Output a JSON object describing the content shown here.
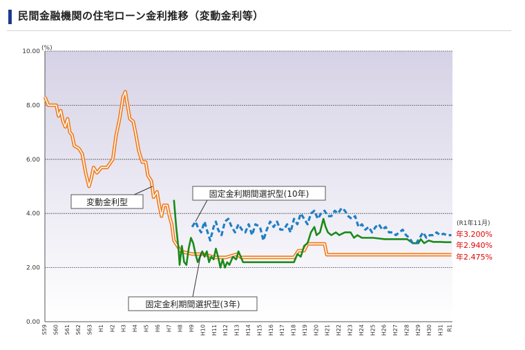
{
  "header": {
    "title": "民間金融機関の住宅ローン金利推移（変動金利等）"
  },
  "chart_data": {
    "type": "line",
    "y_unit": "(%)",
    "ylim": [
      0,
      10
    ],
    "yticks": [
      "0.00",
      "2.00",
      "4.00",
      "6.00",
      "8.00",
      "10.00"
    ],
    "x_start": 1984.0,
    "x_end": 2020.0,
    "x_ticks": [
      {
        "label": "S59",
        "year": 1984
      },
      {
        "label": "S60",
        "year": 1985
      },
      {
        "label": "S61",
        "year": 1986
      },
      {
        "label": "S62",
        "year": 1987
      },
      {
        "label": "S63",
        "year": 1988
      },
      {
        "label": "H1",
        "year": 1989
      },
      {
        "label": "H2",
        "year": 1990
      },
      {
        "label": "H3",
        "year": 1991
      },
      {
        "label": "H4",
        "year": 1992
      },
      {
        "label": "H5",
        "year": 1993
      },
      {
        "label": "H6",
        "year": 1994
      },
      {
        "label": "H7",
        "year": 1995
      },
      {
        "label": "H8",
        "year": 1996
      },
      {
        "label": "H9",
        "year": 1997
      },
      {
        "label": "H10",
        "year": 1998
      },
      {
        "label": "H11",
        "year": 1999
      },
      {
        "label": "H12",
        "year": 2000
      },
      {
        "label": "H13",
        "year": 2001
      },
      {
        "label": "H14",
        "year": 2002
      },
      {
        "label": "H15",
        "year": 2003
      },
      {
        "label": "H16",
        "year": 2004
      },
      {
        "label": "H17",
        "year": 2005
      },
      {
        "label": "H18",
        "year": 2006
      },
      {
        "label": "H19",
        "year": 2007
      },
      {
        "label": "H20",
        "year": 2008
      },
      {
        "label": "H21",
        "year": 2009
      },
      {
        "label": "H22",
        "year": 2010
      },
      {
        "label": "H23",
        "year": 2011
      },
      {
        "label": "H24",
        "year": 2012
      },
      {
        "label": "H25",
        "year": 2013
      },
      {
        "label": "H26",
        "year": 2014
      },
      {
        "label": "H27",
        "year": 2015
      },
      {
        "label": "H28",
        "year": 2016
      },
      {
        "label": "H29",
        "year": 2017
      },
      {
        "label": "H30",
        "year": 2018
      },
      {
        "label": "H31",
        "year": 2019
      },
      {
        "label": "R1",
        "year": 2019.8
      }
    ],
    "series": [
      {
        "name": "変動金利型",
        "color": "#f07d1f",
        "style": "double",
        "points": [
          [
            1984.0,
            8.3
          ],
          [
            1984.3,
            8.0
          ],
          [
            1985.0,
            8.0
          ],
          [
            1985.2,
            7.6
          ],
          [
            1985.4,
            7.8
          ],
          [
            1985.6,
            7.4
          ],
          [
            1985.8,
            7.2
          ],
          [
            1986.0,
            7.5
          ],
          [
            1986.2,
            7.0
          ],
          [
            1986.4,
            6.9
          ],
          [
            1986.6,
            6.5
          ],
          [
            1987.0,
            6.4
          ],
          [
            1987.3,
            6.2
          ],
          [
            1987.6,
            5.5
          ],
          [
            1987.9,
            5.0
          ],
          [
            1988.1,
            5.3
          ],
          [
            1988.3,
            5.7
          ],
          [
            1988.6,
            5.5
          ],
          [
            1989.0,
            5.7
          ],
          [
            1989.5,
            5.7
          ],
          [
            1990.0,
            6.0
          ],
          [
            1990.3,
            6.9
          ],
          [
            1990.6,
            7.5
          ],
          [
            1990.9,
            8.3
          ],
          [
            1991.1,
            8.5
          ],
          [
            1991.3,
            8.0
          ],
          [
            1991.5,
            7.5
          ],
          [
            1991.8,
            7.4
          ],
          [
            1992.0,
            7.0
          ],
          [
            1992.3,
            6.3
          ],
          [
            1992.6,
            5.9
          ],
          [
            1992.9,
            5.9
          ],
          [
            1993.1,
            5.4
          ],
          [
            1993.4,
            5.2
          ],
          [
            1993.6,
            4.6
          ],
          [
            1993.9,
            4.8
          ],
          [
            1994.1,
            4.3
          ],
          [
            1994.3,
            3.9
          ],
          [
            1994.5,
            4.3
          ],
          [
            1994.8,
            4.3
          ],
          [
            1995.0,
            3.9
          ],
          [
            1995.2,
            3.6
          ],
          [
            1995.4,
            3.0
          ],
          [
            1995.7,
            2.8
          ],
          [
            1996.0,
            2.6
          ],
          [
            1997.0,
            2.5
          ],
          [
            1998.0,
            2.5
          ],
          [
            1999.0,
            2.375
          ],
          [
            2000.0,
            2.375
          ],
          [
            2001.0,
            2.5
          ],
          [
            2001.3,
            2.375
          ],
          [
            2002.0,
            2.375
          ],
          [
            2004.0,
            2.375
          ],
          [
            2006.0,
            2.375
          ],
          [
            2006.4,
            2.625
          ],
          [
            2006.9,
            2.625
          ],
          [
            2007.2,
            2.875
          ],
          [
            2008.0,
            2.875
          ],
          [
            2008.7,
            2.875
          ],
          [
            2008.9,
            2.475
          ],
          [
            2012.0,
            2.475
          ],
          [
            2016.0,
            2.475
          ],
          [
            2019.9,
            2.475
          ]
        ]
      },
      {
        "name": "固定金利期間選択型(3年)",
        "color": "#1a8a1a",
        "style": "solid",
        "points": [
          [
            1995.4,
            4.5
          ],
          [
            1995.6,
            3.5
          ],
          [
            1995.8,
            2.7
          ],
          [
            1995.9,
            2.1
          ],
          [
            1996.1,
            2.8
          ],
          [
            1996.3,
            2.2
          ],
          [
            1996.5,
            2.1
          ],
          [
            1996.7,
            2.7
          ],
          [
            1996.9,
            3.1
          ],
          [
            1997.1,
            2.9
          ],
          [
            1997.3,
            2.5
          ],
          [
            1997.5,
            2.2
          ],
          [
            1997.7,
            2.4
          ],
          [
            1997.9,
            2.6
          ],
          [
            1998.1,
            2.4
          ],
          [
            1998.3,
            2.6
          ],
          [
            1998.5,
            2.2
          ],
          [
            1998.7,
            2.4
          ],
          [
            1998.9,
            2.3
          ],
          [
            1999.1,
            2.7
          ],
          [
            1999.3,
            2.4
          ],
          [
            1999.5,
            2.0
          ],
          [
            1999.7,
            2.3
          ],
          [
            1999.9,
            2.0
          ],
          [
            2000.1,
            2.2
          ],
          [
            2000.3,
            2.1
          ],
          [
            2000.6,
            2.4
          ],
          [
            2000.9,
            2.3
          ],
          [
            2001.1,
            2.6
          ],
          [
            2001.3,
            2.4
          ],
          [
            2001.5,
            2.2
          ],
          [
            2002.0,
            2.2
          ],
          [
            2003.0,
            2.2
          ],
          [
            2004.0,
            2.2
          ],
          [
            2005.0,
            2.2
          ],
          [
            2006.0,
            2.2
          ],
          [
            2006.3,
            2.5
          ],
          [
            2006.6,
            2.4
          ],
          [
            2006.9,
            2.8
          ],
          [
            2007.2,
            2.9
          ],
          [
            2007.5,
            3.3
          ],
          [
            2007.8,
            3.5
          ],
          [
            2008.0,
            3.2
          ],
          [
            2008.3,
            3.3
          ],
          [
            2008.6,
            3.8
          ],
          [
            2008.8,
            3.5
          ],
          [
            2009.0,
            3.3
          ],
          [
            2009.3,
            3.2
          ],
          [
            2009.7,
            3.3
          ],
          [
            2010.0,
            3.2
          ],
          [
            2010.5,
            3.3
          ],
          [
            2011.0,
            3.3
          ],
          [
            2011.3,
            3.1
          ],
          [
            2011.6,
            3.2
          ],
          [
            2012.0,
            3.1
          ],
          [
            2013.0,
            3.1
          ],
          [
            2014.0,
            3.05
          ],
          [
            2015.0,
            3.05
          ],
          [
            2016.0,
            3.05
          ],
          [
            2016.5,
            2.9
          ],
          [
            2017.0,
            2.9
          ],
          [
            2017.2,
            3.05
          ],
          [
            2017.5,
            2.9
          ],
          [
            2017.9,
            3.0
          ],
          [
            2018.3,
            2.95
          ],
          [
            2018.7,
            2.95
          ],
          [
            2019.0,
            2.95
          ],
          [
            2019.3,
            2.94
          ],
          [
            2019.9,
            2.94
          ]
        ]
      },
      {
        "name": "固定金利期間選択型(10年)",
        "color": "#1f7fc4",
        "style": "dashed",
        "points": [
          [
            1997.0,
            3.5
          ],
          [
            1997.3,
            3.7
          ],
          [
            1997.5,
            3.5
          ],
          [
            1997.8,
            3.3
          ],
          [
            1998.1,
            3.7
          ],
          [
            1998.3,
            3.4
          ],
          [
            1998.6,
            3.0
          ],
          [
            1998.9,
            3.5
          ],
          [
            1999.1,
            3.7
          ],
          [
            1999.3,
            3.4
          ],
          [
            1999.6,
            3.2
          ],
          [
            1999.9,
            3.7
          ],
          [
            2000.2,
            3.8
          ],
          [
            2000.5,
            3.5
          ],
          [
            2000.8,
            3.3
          ],
          [
            2001.1,
            3.6
          ],
          [
            2001.4,
            3.4
          ],
          [
            2001.7,
            3.3
          ],
          [
            2002.0,
            3.6
          ],
          [
            2002.3,
            3.2
          ],
          [
            2002.6,
            3.6
          ],
          [
            2003.0,
            3.5
          ],
          [
            2003.3,
            3.0
          ],
          [
            2003.6,
            3.4
          ],
          [
            2003.9,
            3.7
          ],
          [
            2004.2,
            3.5
          ],
          [
            2004.5,
            3.7
          ],
          [
            2004.8,
            3.4
          ],
          [
            2005.1,
            3.4
          ],
          [
            2005.4,
            3.6
          ],
          [
            2005.7,
            3.3
          ],
          [
            2006.0,
            3.8
          ],
          [
            2006.3,
            3.6
          ],
          [
            2006.6,
            4.0
          ],
          [
            2006.9,
            3.8
          ],
          [
            2007.2,
            3.6
          ],
          [
            2007.5,
            4.0
          ],
          [
            2007.8,
            4.1
          ],
          [
            2008.1,
            3.8
          ],
          [
            2008.4,
            4.0
          ],
          [
            2008.7,
            4.1
          ],
          [
            2009.0,
            3.9
          ],
          [
            2009.3,
            3.9
          ],
          [
            2009.6,
            4.1
          ],
          [
            2009.9,
            4.0
          ],
          [
            2010.2,
            4.2
          ],
          [
            2010.5,
            4.1
          ],
          [
            2010.8,
            3.9
          ],
          [
            2011.1,
            3.8
          ],
          [
            2011.4,
            3.9
          ],
          [
            2011.7,
            3.5
          ],
          [
            2012.0,
            3.6
          ],
          [
            2012.3,
            3.4
          ],
          [
            2012.6,
            3.5
          ],
          [
            2012.9,
            3.3
          ],
          [
            2013.2,
            3.5
          ],
          [
            2013.5,
            3.6
          ],
          [
            2013.8,
            3.4
          ],
          [
            2014.1,
            3.5
          ],
          [
            2014.4,
            3.3
          ],
          [
            2014.7,
            3.3
          ],
          [
            2015.0,
            3.2
          ],
          [
            2015.3,
            3.3
          ],
          [
            2015.6,
            3.4
          ],
          [
            2015.9,
            3.2
          ],
          [
            2016.2,
            3.1
          ],
          [
            2016.5,
            2.9
          ],
          [
            2016.8,
            2.9
          ],
          [
            2017.1,
            3.1
          ],
          [
            2017.4,
            3.3
          ],
          [
            2017.7,
            3.1
          ],
          [
            2018.0,
            3.2
          ],
          [
            2018.3,
            3.2
          ],
          [
            2018.6,
            3.3
          ],
          [
            2018.9,
            3.2
          ],
          [
            2019.2,
            3.25
          ],
          [
            2019.5,
            3.2
          ],
          [
            2019.9,
            3.2
          ]
        ]
      }
    ],
    "annotations": {
      "label_variable": "変動金利型",
      "label_fixed3": "固定金利期間選択型(3年)",
      "label_fixed10": "固定金利期間選択型(10年)",
      "end_date": "(R1年11月)",
      "end_fixed10": "年3.200%",
      "end_fixed3": "年2.940%",
      "end_variable": "年2.475%"
    }
  }
}
